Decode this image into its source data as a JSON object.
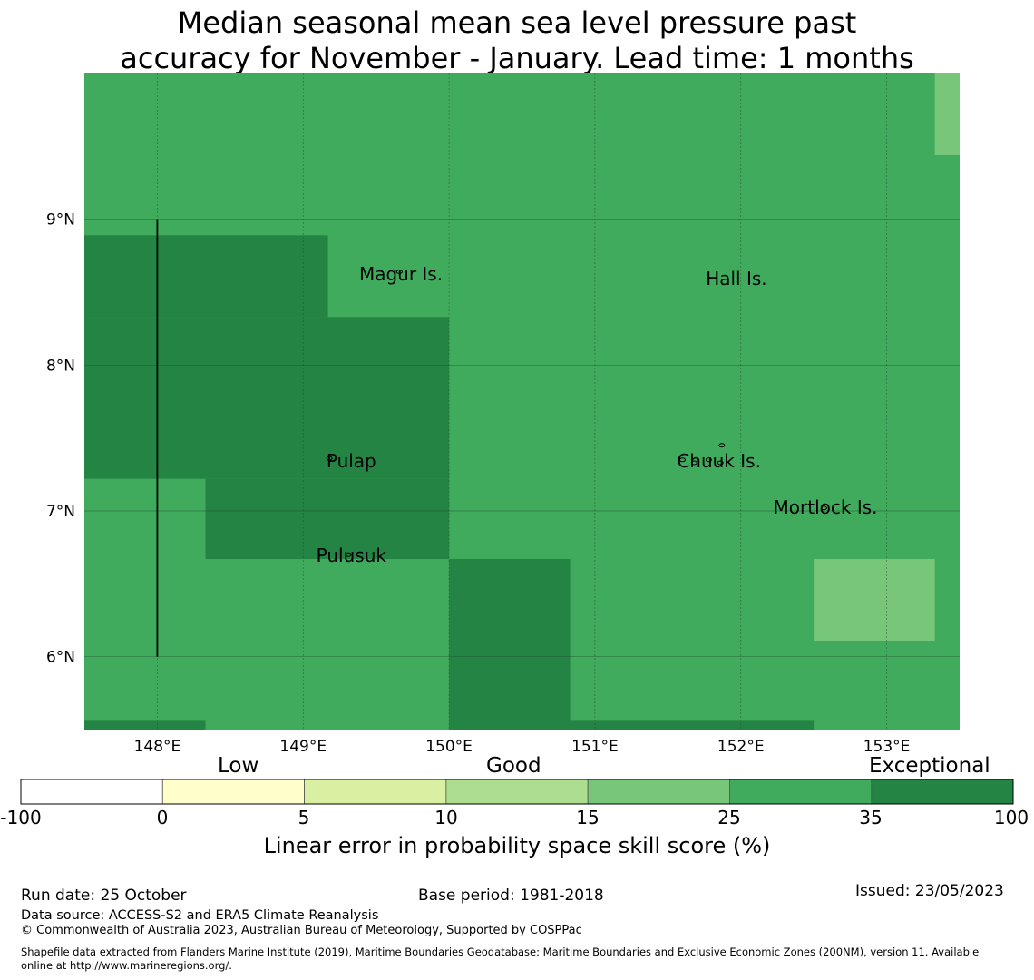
{
  "title": {
    "line1": "Median seasonal mean sea level pressure past",
    "line2": "accuracy for November - January. Lead time: 1 months"
  },
  "map": {
    "lon_range": [
      147.5,
      153.5
    ],
    "lat_range": [
      5.5,
      10.0
    ],
    "lon_ticks": [
      {
        "value": 148,
        "label": "148°E"
      },
      {
        "value": 149,
        "label": "149°E"
      },
      {
        "value": 150,
        "label": "150°E"
      },
      {
        "value": 151,
        "label": "151°E"
      },
      {
        "value": 152,
        "label": "152°E"
      },
      {
        "value": 153,
        "label": "153°E"
      }
    ],
    "lat_ticks": [
      {
        "value": 9,
        "label": "9°N"
      },
      {
        "value": 8,
        "label": "8°N"
      },
      {
        "value": 7,
        "label": "7°N"
      },
      {
        "value": 6,
        "label": "6°N"
      }
    ],
    "base_category": "25-35",
    "cells": [
      {
        "lon": [
          153.33,
          153.5
        ],
        "lat": [
          9.44,
          10.0
        ],
        "category": "15-25"
      },
      {
        "lon": [
          147.5,
          149.17
        ],
        "lat": [
          8.33,
          8.89
        ],
        "category": "35-100"
      },
      {
        "lon": [
          147.5,
          150.0
        ],
        "lat": [
          7.22,
          8.33
        ],
        "category": "35-100"
      },
      {
        "lon": [
          148.33,
          150.0
        ],
        "lat": [
          6.67,
          7.22
        ],
        "category": "35-100"
      },
      {
        "lon": [
          150.0,
          150.83
        ],
        "lat": [
          5.5,
          6.67
        ],
        "category": "35-100"
      },
      {
        "lon": [
          147.5,
          148.33
        ],
        "lat": [
          5.5,
          5.56
        ],
        "category": "35-100"
      },
      {
        "lon": [
          150.83,
          152.5
        ],
        "lat": [
          5.5,
          5.56
        ],
        "category": "35-100"
      },
      {
        "lon": [
          152.5,
          153.33
        ],
        "lat": [
          6.11,
          6.67
        ],
        "category": "15-25"
      }
    ],
    "boundary_line": {
      "lon": 148.0,
      "lat": [
        6.0,
        9.0
      ]
    },
    "places": [
      {
        "name": "Magur Is.",
        "lon": 149.67,
        "lat": 8.58
      },
      {
        "name": "Hall Is.",
        "lon": 151.97,
        "lat": 8.55
      },
      {
        "name": "Pulap",
        "lon": 149.33,
        "lat": 7.3
      },
      {
        "name": "Chuuk Is.",
        "lon": 151.85,
        "lat": 7.3
      },
      {
        "name": "Mortlock Is.",
        "lon": 152.58,
        "lat": 6.98
      },
      {
        "name": "Pulusuk",
        "lon": 149.33,
        "lat": 6.65
      }
    ],
    "islands": [
      {
        "lon": 149.18,
        "lat": 7.36
      },
      {
        "lon": 149.31,
        "lat": 6.7
      },
      {
        "lon": 149.66,
        "lat": 8.64
      },
      {
        "lon": 151.6,
        "lat": 7.35
      },
      {
        "lon": 151.68,
        "lat": 7.33
      },
      {
        "lon": 151.78,
        "lat": 7.35
      },
      {
        "lon": 151.86,
        "lat": 7.33
      },
      {
        "lon": 151.87,
        "lat": 7.45
      },
      {
        "lon": 152.57,
        "lat": 7.02
      }
    ]
  },
  "colorbar": {
    "categories": [
      {
        "key": "-100-0",
        "color": "#ffffff"
      },
      {
        "key": "0-5",
        "color": "#ffffcc"
      },
      {
        "key": "5-10",
        "color": "#d9f0a3"
      },
      {
        "key": "10-15",
        "color": "#addd8e"
      },
      {
        "key": "15-25",
        "color": "#78c679"
      },
      {
        "key": "25-35",
        "color": "#41ab5d"
      },
      {
        "key": "35-100",
        "color": "#238443"
      }
    ],
    "tick_labels": [
      "-100",
      "0",
      "5",
      "10",
      "15",
      "25",
      "35",
      "100"
    ],
    "category_labels": {
      "low": "Low",
      "good": "Good",
      "exceptional": "Exceptional"
    },
    "title": "Linear error in probability space skill score (%)"
  },
  "footer": {
    "run_date": "Run date: 25 October",
    "base_period": "Base period: 1981-2018",
    "issued": "Issued: 23/05/2023",
    "data_source": "Data source: ACCESS-S2 and ERA5 Climate Reanalysis",
    "copyright": "© Commonwealth of Australia 2023, Australian Bureau of Meteorology, Supported by COSPPac",
    "shapefile_line1": "Shapefile data extracted from Flanders Marine Institute (2019), Maritime Boundaries Geodatabase: Maritime Boundaries and Exclusive Economic Zones (200NM), version 11. Available",
    "shapefile_line2": "online at http://www.marineregions.org/."
  }
}
